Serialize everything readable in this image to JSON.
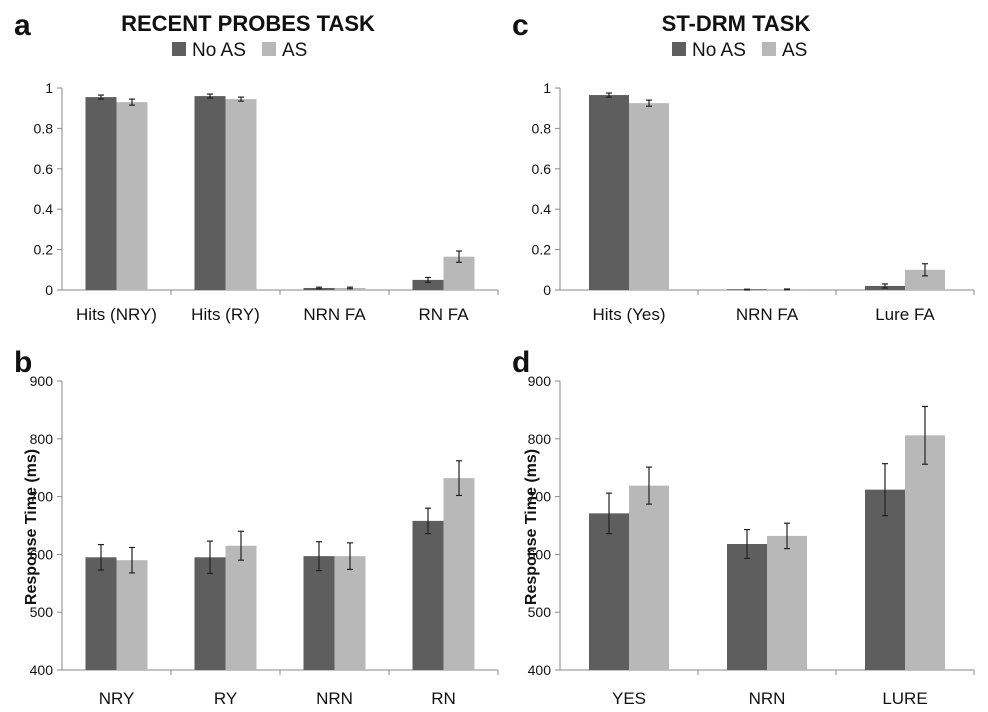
{
  "colors": {
    "no_as": "#5e5e5e",
    "as": "#b8b8b8",
    "axis": "#8a8a8a",
    "error": "#222222"
  },
  "chart_data": [
    {
      "panel": "a",
      "type": "bar",
      "title": "RECENT PROBES TASK",
      "legend_position": "top",
      "ylabel": "",
      "ylim": [
        0,
        1
      ],
      "yticks": [
        0,
        0.2,
        0.4,
        0.6,
        0.8,
        1
      ],
      "ytick_labels": [
        "0",
        "0.2",
        "0.4",
        "0.6",
        "0.8",
        "1"
      ],
      "grid": false,
      "categories": [
        "Hits (NRY)",
        "Hits (RY)",
        "NRN FA",
        "RN FA"
      ],
      "series": [
        {
          "name": "No AS",
          "values": [
            0.955,
            0.96,
            0.01,
            0.05
          ],
          "errors": [
            0.01,
            0.01,
            0.004,
            0.012
          ]
        },
        {
          "name": "AS",
          "values": [
            0.93,
            0.945,
            0.01,
            0.165
          ],
          "errors": [
            0.015,
            0.01,
            0.004,
            0.028
          ]
        }
      ]
    },
    {
      "panel": "b",
      "type": "bar",
      "title": "",
      "ylabel": "Response Time (ms)",
      "ylim": [
        400,
        900
      ],
      "yticks": [
        400,
        500,
        600,
        700,
        800,
        900
      ],
      "ytick_labels": [
        "400",
        "500",
        "600",
        "700",
        "800",
        "900"
      ],
      "grid": false,
      "categories": [
        "NRY",
        "RY",
        "NRN",
        "RN"
      ],
      "series": [
        {
          "name": "No AS",
          "values": [
            595,
            595,
            597,
            658
          ],
          "errors": [
            22,
            28,
            25,
            22
          ]
        },
        {
          "name": "AS",
          "values": [
            590,
            615,
            597,
            732
          ],
          "errors": [
            22,
            25,
            23,
            30
          ]
        }
      ]
    },
    {
      "panel": "c",
      "type": "bar",
      "title": "ST-DRM TASK",
      "legend_position": "top",
      "ylabel": "",
      "ylim": [
        0,
        1
      ],
      "yticks": [
        0,
        0.2,
        0.4,
        0.6,
        0.8,
        1
      ],
      "ytick_labels": [
        "0",
        "0.2",
        "0.4",
        "0.6",
        "0.8",
        "1"
      ],
      "grid": false,
      "categories": [
        "Hits (Yes)",
        "NRN FA",
        "Lure FA"
      ],
      "series": [
        {
          "name": "No AS",
          "values": [
            0.965,
            0.002,
            0.02
          ],
          "errors": [
            0.01,
            0.002,
            0.01
          ]
        },
        {
          "name": "AS",
          "values": [
            0.925,
            0.003,
            0.1
          ],
          "errors": [
            0.015,
            0.002,
            0.03
          ]
        }
      ]
    },
    {
      "panel": "d",
      "type": "bar",
      "title": "",
      "ylabel": "Response Time (ms)",
      "ylim": [
        400,
        900
      ],
      "yticks": [
        400,
        500,
        600,
        700,
        800,
        900
      ],
      "ytick_labels": [
        "400",
        "500",
        "600",
        "700",
        "800",
        "900"
      ],
      "grid": false,
      "categories": [
        "YES",
        "NRN",
        "LURE"
      ],
      "series": [
        {
          "name": "No AS",
          "values": [
            671,
            618,
            712
          ],
          "errors": [
            35,
            25,
            45
          ]
        },
        {
          "name": "AS",
          "values": [
            719,
            632,
            806
          ],
          "errors": [
            32,
            22,
            50
          ]
        }
      ]
    }
  ]
}
